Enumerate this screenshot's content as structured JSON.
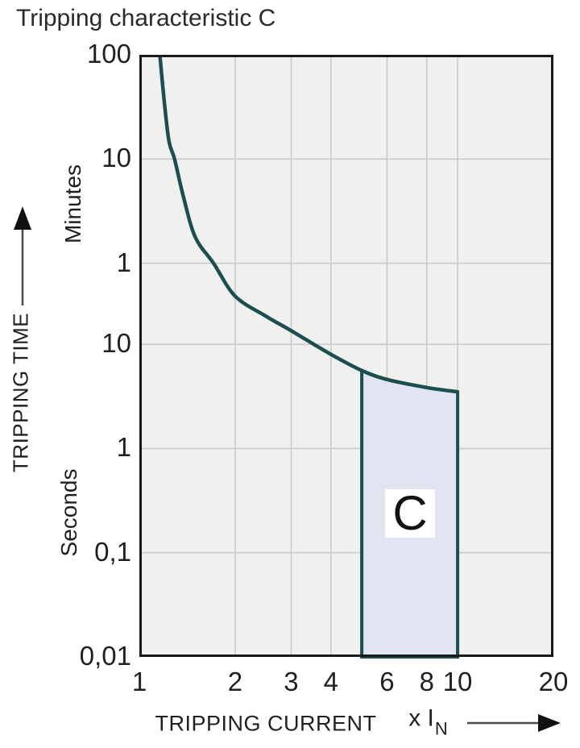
{
  "title": "Tripping characteristic C",
  "colors": {
    "curve": "#1d4e4f",
    "region_fill": "#e0e5f1",
    "plot_background": "#f0f0ee",
    "gridline": "#c9cccb",
    "frame": "#1a1a1a",
    "text": "#231f20",
    "arrow_shaft": "#4a4a4a",
    "arrow_head": "#111111"
  },
  "y_axis": {
    "title": "TRIPPING TIME",
    "unit_upper": "Minutes",
    "unit_lower": "Seconds",
    "ticks": [
      {
        "label": "100",
        "seconds": 6000
      },
      {
        "label": "10",
        "seconds": 600
      },
      {
        "label": "1",
        "seconds": 60
      },
      {
        "label": "10",
        "seconds": 10
      },
      {
        "label": "1",
        "seconds": 1
      },
      {
        "label": "0,1",
        "seconds": 0.1
      },
      {
        "label": "0,01",
        "seconds": 0.01
      }
    ]
  },
  "x_axis": {
    "title": "TRIPPING CURRENT",
    "multiplier_prefix": "x I",
    "multiplier_sub": "N",
    "ticks": [
      {
        "label": "1",
        "value": 1
      },
      {
        "label": "2",
        "value": 2
      },
      {
        "label": "3",
        "value": 3
      },
      {
        "label": "4",
        "value": 4
      },
      {
        "label": "6",
        "value": 6
      },
      {
        "label": "8",
        "value": 8
      },
      {
        "label": "10",
        "value": 10
      },
      {
        "label": "20",
        "value": 20
      }
    ]
  },
  "chart_data": {
    "type": "line",
    "title": "Tripping characteristic C",
    "x_scale": "log",
    "y_scale": "log",
    "xlabel": "TRIPPING CURRENT (x In)",
    "ylabel": "TRIPPING TIME",
    "x_domain": [
      1,
      20
    ],
    "y_domain_seconds": [
      0.01,
      6000
    ],
    "x_gridlines": [
      2,
      3,
      4,
      6,
      8,
      10
    ],
    "y_gridlines_seconds": [
      600,
      60,
      10,
      1,
      0.1
    ],
    "grid": true,
    "legend": false,
    "series": [
      {
        "name": "C tripping curve",
        "points_x_in_t_seconds": [
          [
            1.16,
            6000
          ],
          [
            1.2,
            2000
          ],
          [
            1.24,
            880
          ],
          [
            1.29,
            600
          ],
          [
            1.38,
            250
          ],
          [
            1.5,
            106
          ],
          [
            1.71,
            60
          ],
          [
            2,
            29
          ],
          [
            2.5,
            18.6
          ],
          [
            3,
            13.5
          ],
          [
            4,
            8
          ],
          [
            5,
            5.6
          ],
          [
            6,
            4.6
          ],
          [
            8,
            3.85
          ],
          [
            10,
            3.5
          ]
        ]
      }
    ],
    "trip_region": {
      "label": "C",
      "x_range": [
        5,
        10
      ],
      "bottom_seconds": 0.01,
      "top_follows_curve": true
    }
  }
}
